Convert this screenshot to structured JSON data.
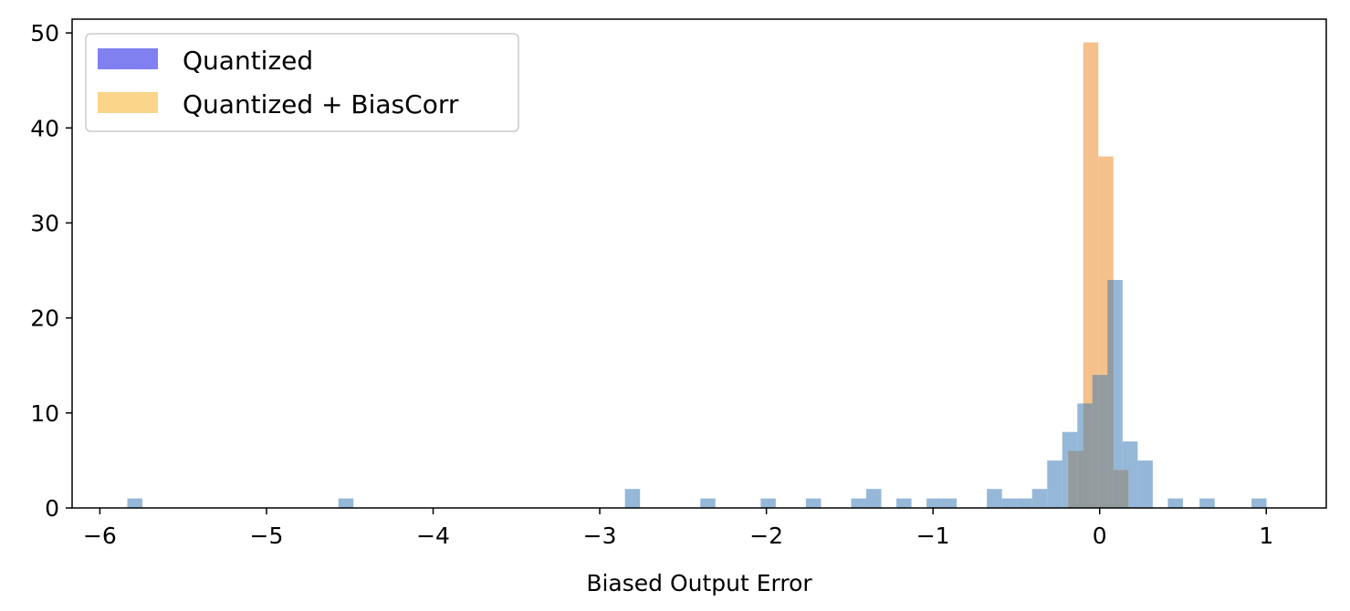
{
  "chart_data": {
    "type": "histogram",
    "xlabel": "Biased Output Error",
    "ylabel": "",
    "xlim": [
      -6.1666,
      1.36
    ],
    "ylim": [
      0,
      51.45
    ],
    "xticks": [
      -6,
      -5,
      -4,
      -3,
      -2,
      -1,
      0,
      1
    ],
    "xtick_labels": [
      "−6",
      "−5",
      "−4",
      "−3",
      "−2",
      "−1",
      "0",
      "1"
    ],
    "yticks": [
      0,
      10,
      20,
      30,
      40,
      50
    ],
    "ytick_labels": [
      "0",
      "10",
      "20",
      "30",
      "40",
      "50"
    ],
    "grid": false,
    "legend_position": "top-left",
    "legend": [
      {
        "label": "Quantized",
        "color": "#8080f0"
      },
      {
        "label": "Quantized + BiasCorr",
        "color": "#fad58a"
      }
    ],
    "bin_width": 0.0905,
    "series": [
      {
        "name": "Quantized",
        "color": "#7ba6cf",
        "opacity": 0.8,
        "bins": [
          {
            "x0": -5.8355,
            "count": 1
          },
          {
            "x0": -4.5684,
            "count": 1
          },
          {
            "x0": -2.8489,
            "count": 2
          },
          {
            "x0": -2.3964,
            "count": 1
          },
          {
            "x0": -2.0344,
            "count": 1
          },
          {
            "x0": -1.7629,
            "count": 1
          },
          {
            "x0": -1.4913,
            "count": 1
          },
          {
            "x0": -1.4008,
            "count": 2
          },
          {
            "x0": -1.2198,
            "count": 1
          },
          {
            "x0": -1.0388,
            "count": 1
          },
          {
            "x0": -0.9483,
            "count": 1
          },
          {
            "x0": -0.6768,
            "count": 2
          },
          {
            "x0": -0.5863,
            "count": 1
          },
          {
            "x0": -0.4958,
            "count": 1
          },
          {
            "x0": -0.4053,
            "count": 2
          },
          {
            "x0": -0.3148,
            "count": 5
          },
          {
            "x0": -0.2243,
            "count": 8
          },
          {
            "x0": -0.1338,
            "count": 11
          },
          {
            "x0": -0.0433,
            "count": 14
          },
          {
            "x0": 0.0472,
            "count": 24
          },
          {
            "x0": 0.1377,
            "count": 7
          },
          {
            "x0": 0.2282,
            "count": 5
          },
          {
            "x0": 0.4092,
            "count": 1
          },
          {
            "x0": 0.5997,
            "count": 1
          },
          {
            "x0": 0.9112,
            "count": 1
          }
        ]
      },
      {
        "name": "Quantized + BiasCorr",
        "color": "#f5c08b",
        "opacity": 1.0,
        "bins": [
          {
            "x0": -0.1889,
            "count": 6
          },
          {
            "x0": -0.0984,
            "count": 49
          },
          {
            "x0": -0.0079,
            "count": 37
          },
          {
            "x0": 0.0826,
            "count": 4
          }
        ]
      }
    ]
  }
}
